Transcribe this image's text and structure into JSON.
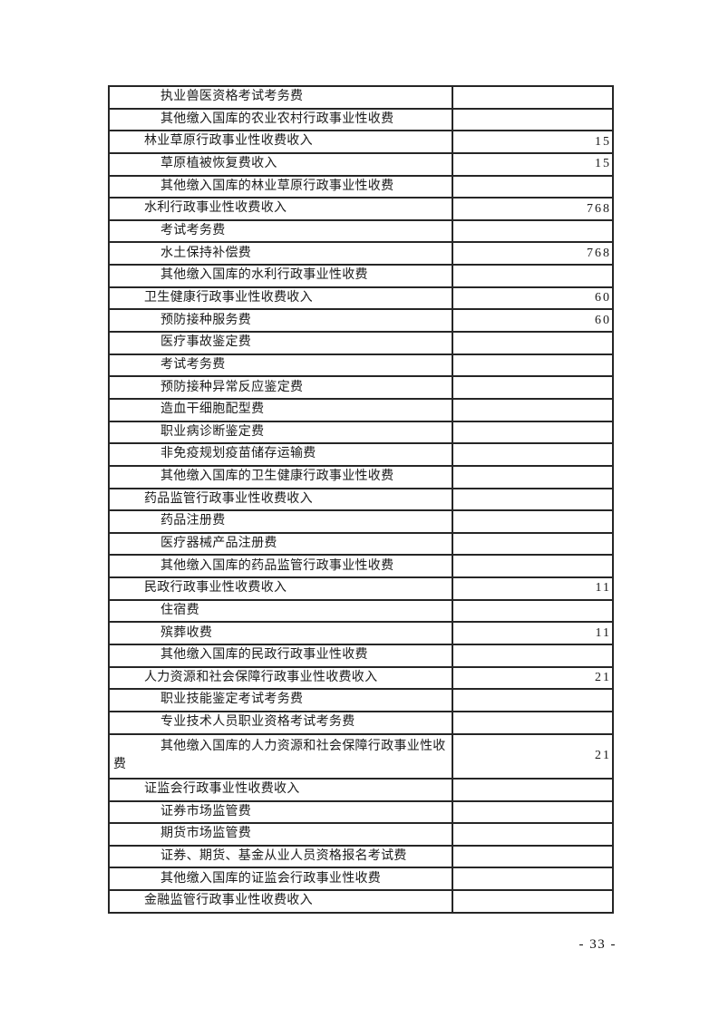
{
  "page": {
    "number_label": "- 33 -"
  },
  "colors": {
    "table_border": "#262626",
    "text": "#1a1a1a",
    "page_background": "#ffffff"
  },
  "table": {
    "columns": [
      "item",
      "amount"
    ],
    "rows": [
      {
        "label": "执业兽医资格考试考务费",
        "indent": 2,
        "value": ""
      },
      {
        "label": "其他缴入国库的农业农村行政事业性收费",
        "indent": 2,
        "value": ""
      },
      {
        "label": "林业草原行政事业性收费收入",
        "indent": 1,
        "value": "15"
      },
      {
        "label": "草原植被恢复费收入",
        "indent": 2,
        "value": "15"
      },
      {
        "label": "其他缴入国库的林业草原行政事业性收费",
        "indent": 2,
        "value": ""
      },
      {
        "label": "水利行政事业性收费收入",
        "indent": 1,
        "value": "768"
      },
      {
        "label": "考试考务费",
        "indent": 2,
        "value": ""
      },
      {
        "label": "水土保持补偿费",
        "indent": 2,
        "value": "768"
      },
      {
        "label": "其他缴入国库的水利行政事业性收费",
        "indent": 2,
        "value": ""
      },
      {
        "label": "卫生健康行政事业性收费收入",
        "indent": 1,
        "value": "60"
      },
      {
        "label": "预防接种服务费",
        "indent": 2,
        "value": "60"
      },
      {
        "label": "医疗事故鉴定费",
        "indent": 2,
        "value": ""
      },
      {
        "label": "考试考务费",
        "indent": 2,
        "value": ""
      },
      {
        "label": "预防接种异常反应鉴定费",
        "indent": 2,
        "value": ""
      },
      {
        "label": "造血干细胞配型费",
        "indent": 2,
        "value": ""
      },
      {
        "label": "职业病诊断鉴定费",
        "indent": 2,
        "value": ""
      },
      {
        "label": "非免疫规划疫苗储存运输费",
        "indent": 2,
        "value": ""
      },
      {
        "label": "其他缴入国库的卫生健康行政事业性收费",
        "indent": 2,
        "value": ""
      },
      {
        "label": "药品监管行政事业性收费收入",
        "indent": 1,
        "value": ""
      },
      {
        "label": "药品注册费",
        "indent": 2,
        "value": ""
      },
      {
        "label": "医疗器械产品注册费",
        "indent": 2,
        "value": ""
      },
      {
        "label": "其他缴入国库的药品监管行政事业性收费",
        "indent": 2,
        "value": ""
      },
      {
        "label": "民政行政事业性收费收入",
        "indent": 1,
        "value": "11"
      },
      {
        "label": "住宿费",
        "indent": 2,
        "value": ""
      },
      {
        "label": "殡葬收费",
        "indent": 2,
        "value": "11"
      },
      {
        "label": "其他缴入国库的民政行政事业性收费",
        "indent": 2,
        "value": ""
      },
      {
        "label": "人力资源和社会保障行政事业性收费收入",
        "indent": 1,
        "value": "21"
      },
      {
        "label": "职业技能鉴定考试考务费",
        "indent": 2,
        "value": ""
      },
      {
        "label": "专业技术人员职业资格考试考务费",
        "indent": 2,
        "value": ""
      },
      {
        "label": "其他缴入国库的人力资源和社会保障行政事业性收费",
        "indent": 2,
        "value": "21",
        "wrap": true
      },
      {
        "label": "证监会行政事业性收费收入",
        "indent": 1,
        "value": ""
      },
      {
        "label": "证券市场监管费",
        "indent": 2,
        "value": ""
      },
      {
        "label": "期货市场监管费",
        "indent": 2,
        "value": ""
      },
      {
        "label": "证券、期货、基金从业人员资格报名考试费",
        "indent": 2,
        "value": ""
      },
      {
        "label": "其他缴入国库的证监会行政事业性收费",
        "indent": 2,
        "value": ""
      },
      {
        "label": "金融监管行政事业性收费收入",
        "indent": 1,
        "value": ""
      }
    ]
  }
}
